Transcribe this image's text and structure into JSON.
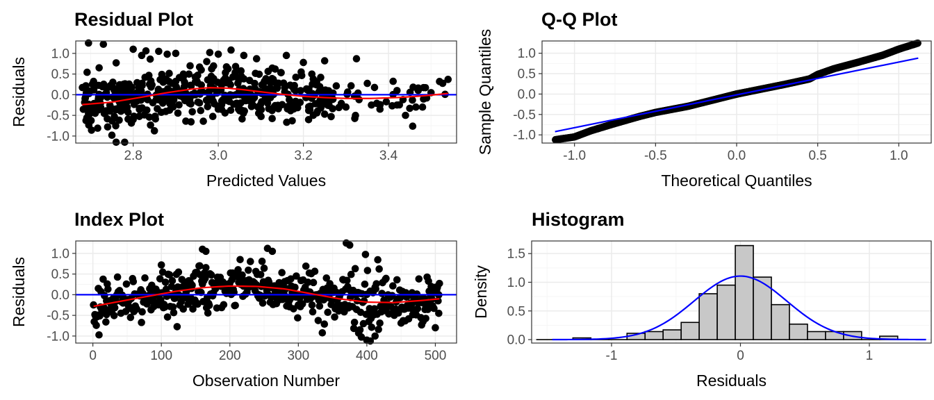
{
  "colors": {
    "points": "#000000",
    "smooth": "#ff0000",
    "reference": "#0000ff",
    "hist_fill": "#c8c8c8",
    "grid_major": "#ebebeb",
    "grid_minor": "#f5f5f5"
  },
  "chart_data": [
    {
      "id": "residual",
      "type": "scatter",
      "title": "Residual Plot",
      "xlabel": "Predicted Values",
      "ylabel": "Residuals",
      "xlim": [
        2.665,
        3.56
      ],
      "ylim": [
        -1.17,
        1.3
      ],
      "xticks": [
        2.8,
        3.0,
        3.2,
        3.4
      ],
      "xtick_labels": [
        "2.8",
        "3.0",
        "3.2",
        "3.4"
      ],
      "yticks": [
        -1.0,
        -0.5,
        0.0,
        0.5,
        1.0
      ],
      "ytick_labels": [
        "-1.0",
        "-0.5",
        "0.0",
        "0.5",
        "1.0"
      ],
      "grid": true,
      "n_points": 506,
      "x_range": [
        2.68,
        3.54
      ],
      "reference_line": {
        "type": "h",
        "value": 0
      },
      "smooth": {
        "x": [
          2.68,
          2.75,
          2.82,
          2.88,
          2.94,
          2.98,
          3.02,
          3.06,
          3.1,
          3.15,
          3.2,
          3.25,
          3.3,
          3.36,
          3.42,
          3.48,
          3.54
        ],
        "y": [
          -0.24,
          -0.18,
          -0.06,
          0.05,
          0.14,
          0.17,
          0.16,
          0.12,
          0.07,
          0.01,
          -0.04,
          -0.07,
          -0.09,
          -0.09,
          -0.07,
          -0.03,
          0.03
        ]
      },
      "highlight_points": [
        {
          "x": 2.695,
          "y": 1.25
        },
        {
          "x": 2.73,
          "y": 1.22
        },
        {
          "x": 2.72,
          "y": 0.65
        },
        {
          "x": 2.76,
          "y": 0.77
        },
        {
          "x": 2.8,
          "y": 1.1
        },
        {
          "x": 2.83,
          "y": 1.06
        },
        {
          "x": 2.84,
          "y": 0.86
        },
        {
          "x": 2.86,
          "y": 1.05
        },
        {
          "x": 2.88,
          "y": 0.98
        },
        {
          "x": 2.9,
          "y": 1.0
        },
        {
          "x": 2.82,
          "y": 0.95
        },
        {
          "x": 2.96,
          "y": 0.6
        },
        {
          "x": 2.98,
          "y": 1.02
        },
        {
          "x": 3.0,
          "y": 0.98
        },
        {
          "x": 3.03,
          "y": 1.08
        },
        {
          "x": 3.06,
          "y": 0.95
        },
        {
          "x": 3.09,
          "y": 0.87
        },
        {
          "x": 3.16,
          "y": 0.95
        },
        {
          "x": 3.2,
          "y": 0.78
        },
        {
          "x": 3.25,
          "y": 0.82
        },
        {
          "x": 2.75,
          "y": -0.98
        },
        {
          "x": 2.76,
          "y": -1.15
        },
        {
          "x": 2.78,
          "y": -1.15
        },
        {
          "x": 2.74,
          "y": -0.78
        },
        {
          "x": 2.8,
          "y": -0.6
        },
        {
          "x": 3.0,
          "y": -0.35
        },
        {
          "x": 3.05,
          "y": -0.35
        },
        {
          "x": 3.25,
          "y": -0.47
        },
        {
          "x": 3.3,
          "y": -0.3
        },
        {
          "x": 3.36,
          "y": -0.25
        },
        {
          "x": 3.38,
          "y": -0.35
        },
        {
          "x": 3.42,
          "y": -0.25
        },
        {
          "x": 3.44,
          "y": -0.5
        },
        {
          "x": 3.45,
          "y": -0.33
        },
        {
          "x": 3.48,
          "y": -0.3
        },
        {
          "x": 3.5,
          "y": 0.05
        },
        {
          "x": 3.52,
          "y": 0.32
        },
        {
          "x": 3.54,
          "y": 0.37
        },
        {
          "x": 3.42,
          "y": 0.1
        },
        {
          "x": 3.47,
          "y": 0.16
        }
      ]
    },
    {
      "id": "qq",
      "type": "scatter",
      "title": "Q-Q Plot",
      "xlabel": "Theoretical Quantiles",
      "ylabel": "Sample Quantiles",
      "xlim": [
        -1.2,
        1.2
      ],
      "ylim": [
        -1.2,
        1.3
      ],
      "xticks": [
        -1.0,
        -0.5,
        0.0,
        0.5,
        1.0
      ],
      "xtick_labels": [
        "-1.0",
        "-0.5",
        "0.0",
        "0.5",
        "1.0"
      ],
      "yticks": [
        -1.0,
        -0.5,
        0.0,
        0.5,
        1.0
      ],
      "ytick_labels": [
        "-1.0",
        "-0.5",
        "0.0",
        "0.5",
        "1.0"
      ],
      "grid": true,
      "n_points": 506,
      "reference_line": {
        "x": [
          -1.12,
          1.12
        ],
        "y": [
          -0.92,
          0.88
        ]
      },
      "sample_curve": {
        "x": [
          -1.12,
          -1.0,
          -0.9,
          -0.75,
          -0.6,
          -0.5,
          -0.3,
          0.0,
          0.3,
          0.45,
          0.5,
          0.6,
          0.75,
          0.9,
          1.0,
          1.12
        ],
        "y": [
          -1.12,
          -1.05,
          -0.9,
          -0.72,
          -0.55,
          -0.45,
          -0.3,
          0.0,
          0.24,
          0.37,
          0.48,
          0.62,
          0.78,
          0.95,
          1.1,
          1.25
        ]
      }
    },
    {
      "id": "index",
      "type": "scatter",
      "title": "Index Plot",
      "xlabel": "Observation Number",
      "ylabel": "Residuals",
      "xlim": [
        -25,
        531
      ],
      "ylim": [
        -1.17,
        1.3
      ],
      "xticks": [
        0,
        100,
        200,
        300,
        400,
        500
      ],
      "xtick_labels": [
        "0",
        "100",
        "200",
        "300",
        "400",
        "500"
      ],
      "yticks": [
        -1.0,
        -0.5,
        0.0,
        0.5,
        1.0
      ],
      "ytick_labels": [
        "-1.0",
        "-0.5",
        "0.0",
        "0.5",
        "1.0"
      ],
      "grid": true,
      "n_points": 506,
      "reference_line": {
        "type": "h",
        "value": 0
      },
      "smooth": {
        "x": [
          1,
          40,
          80,
          120,
          160,
          200,
          240,
          280,
          320,
          360,
          400,
          440,
          480,
          506
        ],
        "y": [
          -0.28,
          -0.16,
          -0.04,
          0.08,
          0.17,
          0.21,
          0.2,
          0.14,
          0.02,
          -0.1,
          -0.18,
          -0.19,
          -0.14,
          -0.1
        ]
      },
      "highlight_points": [
        {
          "x": 160,
          "y": 1.1
        },
        {
          "x": 165,
          "y": 1.05
        },
        {
          "x": 255,
          "y": 1.12
        },
        {
          "x": 262,
          "y": 1.05
        },
        {
          "x": 370,
          "y": 1.25
        },
        {
          "x": 375,
          "y": 1.2
        },
        {
          "x": 100,
          "y": 0.72
        },
        {
          "x": 215,
          "y": 0.85
        },
        {
          "x": 390,
          "y": -0.85
        },
        {
          "x": 400,
          "y": -1.1
        },
        {
          "x": 405,
          "y": -1.12
        },
        {
          "x": 412,
          "y": -1.0
        },
        {
          "x": 500,
          "y": -0.8
        },
        {
          "x": 505,
          "y": -0.45
        },
        {
          "x": 55,
          "y": -0.55
        },
        {
          "x": 20,
          "y": -0.48
        }
      ]
    },
    {
      "id": "histogram",
      "type": "bar",
      "title": "Histogram",
      "xlabel": "Residuals",
      "ylabel": "Density",
      "xlim": [
        -1.62,
        1.48
      ],
      "ylim": [
        -0.06,
        1.72
      ],
      "xticks": [
        -1,
        0,
        1
      ],
      "xtick_labels": [
        "-1",
        "0",
        "1"
      ],
      "yticks": [
        0.0,
        0.5,
        1.0,
        1.5
      ],
      "ytick_labels": [
        "0.0",
        "0.5",
        "1.0",
        "1.5"
      ],
      "grid": true,
      "bin_edges": [
        -1.58,
        -1.44,
        -1.3,
        -1.16,
        -1.02,
        -0.88,
        -0.74,
        -0.6,
        -0.46,
        -0.32,
        -0.18,
        -0.04,
        0.1,
        0.24,
        0.38,
        0.52,
        0.66,
        0.8,
        0.94,
        1.08,
        1.22,
        1.36
      ],
      "values": [
        0.0,
        0.0,
        0.03,
        0.0,
        0.0,
        0.11,
        0.14,
        0.17,
        0.3,
        0.8,
        0.95,
        1.64,
        1.09,
        0.61,
        0.27,
        0.14,
        0.14,
        0.14,
        0.0,
        0.06,
        0.0
      ],
      "density_curve": {
        "mean": 0.0,
        "sd": 0.36
      }
    }
  ]
}
